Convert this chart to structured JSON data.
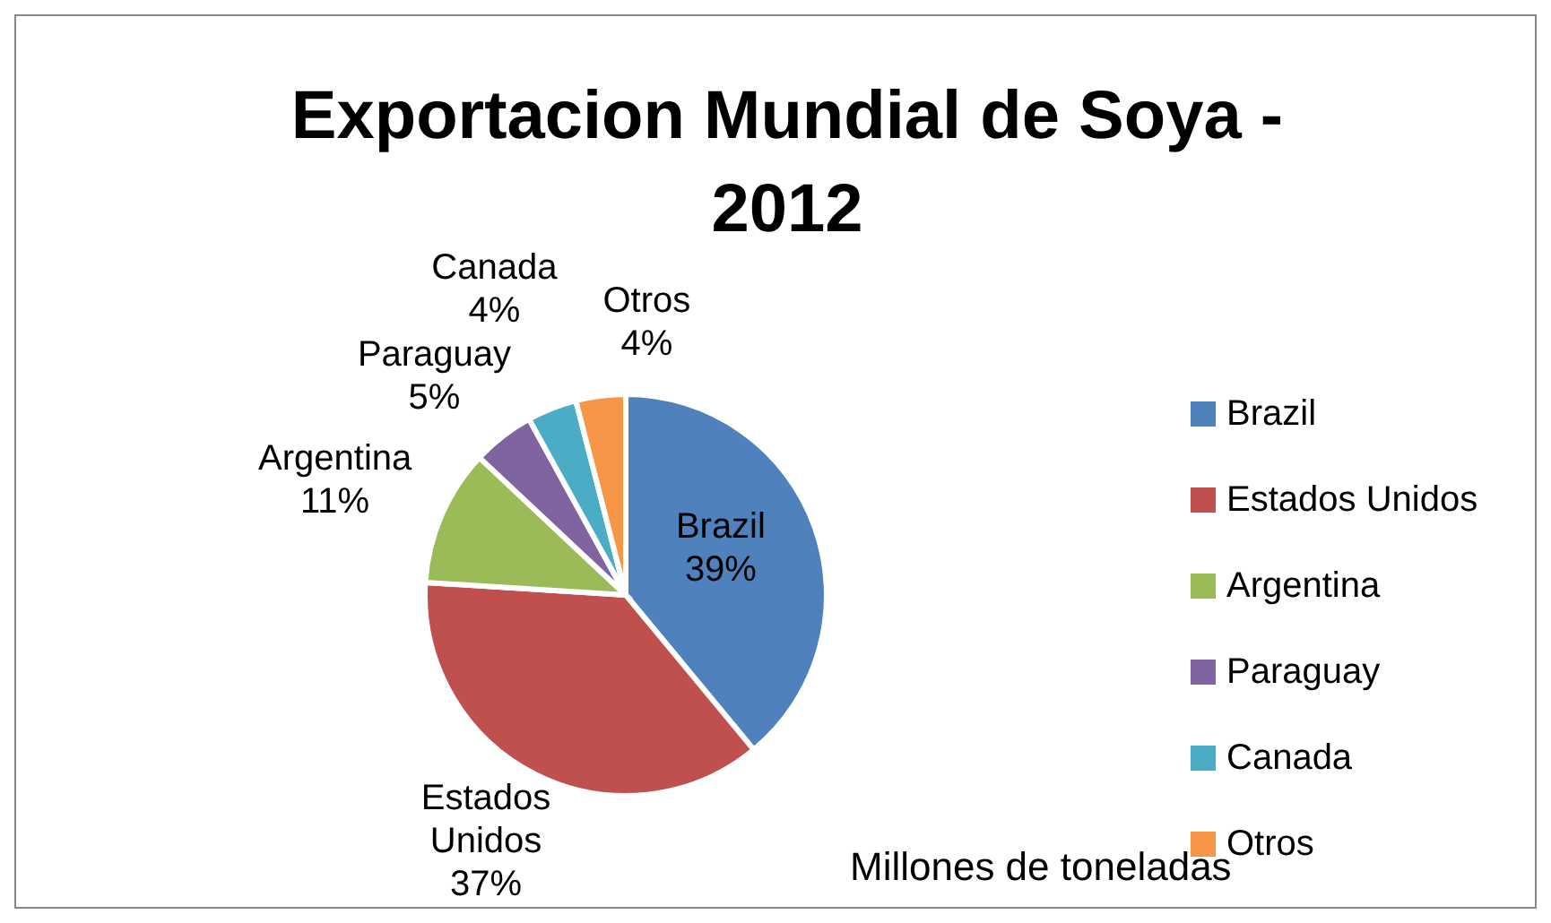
{
  "chart_data": {
    "type": "pie",
    "title": "Exportacion Mundial de Soya - 2012",
    "categories": [
      "Brazil",
      "Estados Unidos",
      "Argentina",
      "Paraguay",
      "Canada",
      "Otros"
    ],
    "values": [
      39,
      37,
      11,
      5,
      4,
      4
    ],
    "colors": [
      "#4f81bd",
      "#c0504d",
      "#9bbb59",
      "#8064a2",
      "#4bacc6",
      "#f79646"
    ],
    "value_labels": [
      "39%",
      "37%",
      "11%",
      "5%",
      "4%",
      "4%"
    ],
    "legend": "right",
    "annotations": [
      "Millones de toneladas"
    ]
  }
}
